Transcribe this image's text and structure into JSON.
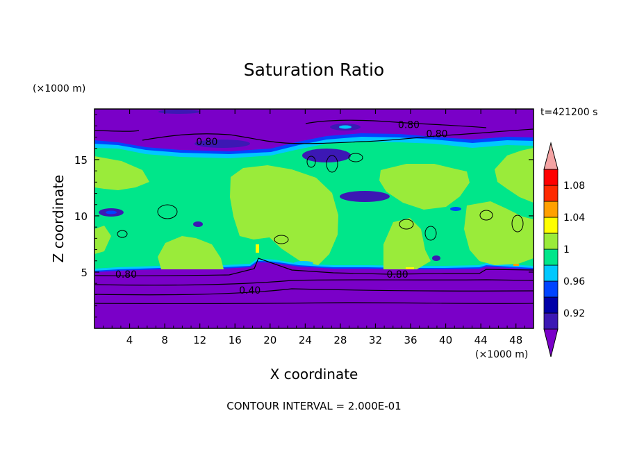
{
  "chart_data": {
    "type": "heatmap",
    "title": "Saturation Ratio",
    "xlabel": "X coordinate",
    "ylabel": "Z coordinate",
    "x_unit": "(×1000 m)",
    "y_unit": "(×1000 m)",
    "xlim": [
      0,
      50
    ],
    "ylim": [
      0,
      19.5
    ],
    "x_ticks": [
      "4",
      "8",
      "12",
      "16",
      "20",
      "24",
      "28",
      "32",
      "36",
      "40",
      "44",
      "48"
    ],
    "y_ticks": [
      "5",
      "10",
      "15"
    ],
    "time_label": "t=421200 s",
    "footer": "CONTOUR INTERVAL = 2.000E-01",
    "colorbar": {
      "labels": [
        "0.92",
        "0.96",
        "1",
        "1.04",
        "1.08"
      ],
      "levels": [
        0.9,
        0.92,
        0.94,
        0.96,
        0.98,
        1.0,
        1.02,
        1.04,
        1.06,
        1.08,
        1.1
      ],
      "colors": [
        "#7a00c8",
        "#3c18b4",
        "#0000a8",
        "#0044ff",
        "#00c8ff",
        "#00e68a",
        "#9aeb3a",
        "#ffff00",
        "#ffa000",
        "#ff2a00",
        "#ff0000",
        "#f4a3a3"
      ]
    },
    "contour_labels": [
      {
        "text": "0.80",
        "x": 35.8,
        "z": 18.1
      },
      {
        "text": "0.80",
        "x": 39.0,
        "z": 17.3
      },
      {
        "text": "0.80",
        "x": 12.8,
        "z": 16.6
      },
      {
        "text": "0.80",
        "x": 3.6,
        "z": 4.8
      },
      {
        "text": "0.40",
        "x": 17.7,
        "z": 3.4
      },
      {
        "text": "0.80",
        "x": 34.5,
        "z": 4.8
      }
    ]
  }
}
